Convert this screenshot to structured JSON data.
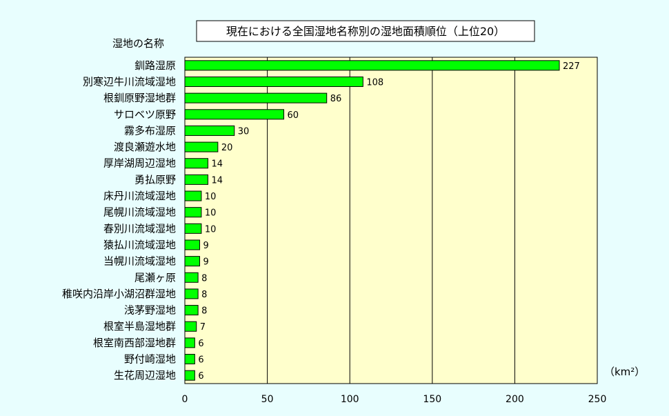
{
  "chart_data": {
    "type": "bar",
    "orientation": "horizontal",
    "title": "現在における全国湿地名称別の湿地面積順位（上位20）",
    "category_axis_label": "湿地の名称",
    "value_axis_unit": "（km²）",
    "categories": [
      "釧路湿原",
      "別寒辺牛川流域湿地",
      "根釧原野湿地群",
      "サロベツ原野",
      "霧多布湿原",
      "渡良瀬遊水地",
      "厚岸湖周辺湿地",
      "勇払原野",
      "床丹川流域湿地",
      "尾幌川流域湿地",
      "春別川流域湿地",
      "猿払川流域湿地",
      "当幌川流域湿地",
      "尾瀬ヶ原",
      "稚咲内沿岸小湖沼群湿地",
      "浅茅野湿地",
      "根室半島湿地群",
      "根室南西部湿地群",
      "野付崎湿地",
      "生花周辺湿地"
    ],
    "values": [
      227,
      108,
      86,
      60,
      30,
      20,
      14,
      14,
      10,
      10,
      10,
      9,
      9,
      8,
      8,
      8,
      7,
      6,
      6,
      6
    ],
    "xlim": [
      0,
      250
    ],
    "xticks": [
      0,
      50,
      100,
      150,
      200,
      250
    ],
    "grid": "vertical",
    "legend": "none",
    "colors": {
      "bar": "#00ff00",
      "plot_background": "#ffffcc",
      "page_background": "#e8fefe",
      "title_box": "#ffffff"
    }
  }
}
